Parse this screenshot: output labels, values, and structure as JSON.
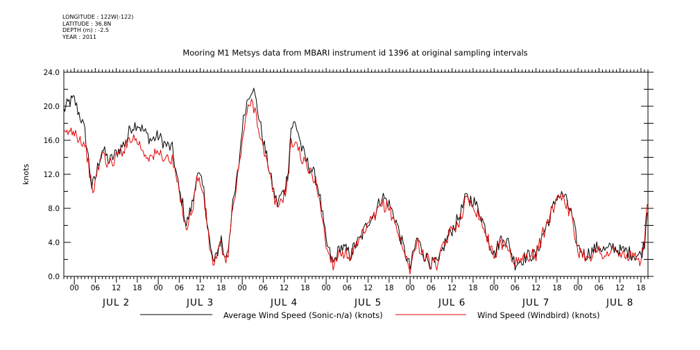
{
  "header": {
    "meta": [
      "LONGITUDE : 122W(-122)",
      "LATITUDE : 36.8N",
      "DEPTH (m) : -2.5",
      "YEAR : 2011"
    ]
  },
  "chart_data": {
    "type": "line",
    "title": "Mooring M1 Metsys data from MBARI instrument id 1396 at original sampling intervals",
    "ylabel": "knots",
    "xlabel": "",
    "ylim": [
      0,
      24
    ],
    "xlim_hours_description": "2011-07-01 21:00 to 2011-07-08 19:00 (x values below are hours from 2011-07-02 00:00)",
    "yticks": [
      "0.0",
      "4.0",
      "8.0",
      "12.0",
      "16.0",
      "20.0",
      "24.0"
    ],
    "hour_tick_labels": [
      "00",
      "06",
      "12",
      "18"
    ],
    "date_labels": [
      {
        "label": "JUL  2",
        "hour": 12
      },
      {
        "label": "JUL  3",
        "hour": 36
      },
      {
        "label": "JUL  4",
        "hour": 60
      },
      {
        "label": "JUL  5",
        "hour": 84
      },
      {
        "label": "JUL  6",
        "hour": 108
      },
      {
        "label": "JUL  7",
        "hour": 132
      },
      {
        "label": "JUL  8",
        "hour": 156
      }
    ],
    "legend_placement": "bottom",
    "series": [
      {
        "name": "Average Wind Speed (Sonic-n/a) (knots)",
        "color": "#000000",
        "x": [
          -3,
          -1.5,
          0,
          1,
          2,
          3,
          4,
          5,
          6,
          7,
          8,
          10,
          12,
          14,
          15,
          16,
          18,
          20,
          22,
          24,
          26,
          28,
          29,
          30,
          31,
          32,
          33,
          34,
          35,
          36,
          37,
          38,
          39,
          40,
          41,
          42,
          43,
          44,
          45,
          46,
          47,
          48,
          49,
          50,
          51,
          52,
          54,
          56,
          57,
          58,
          59,
          60,
          61,
          62,
          63,
          64,
          65,
          66,
          67,
          68,
          69,
          70,
          71,
          72,
          74,
          76,
          78,
          79,
          80,
          81,
          82,
          84,
          86,
          88,
          90,
          92,
          94,
          96,
          98,
          100,
          102,
          103,
          104,
          106,
          108,
          110,
          112,
          114,
          116,
          118,
          120,
          122,
          124,
          126,
          128,
          130,
          132,
          134,
          136,
          138,
          140,
          142,
          144,
          146,
          148,
          150,
          152,
          154,
          156,
          158,
          160,
          162,
          163,
          163.8
        ],
        "y": [
          19.5,
          20.5,
          20.8,
          19.5,
          18.5,
          17.0,
          14.0,
          10.5,
          11.5,
          13.5,
          15.0,
          13.5,
          14.5,
          15.5,
          16.0,
          17.5,
          18.0,
          17.0,
          16.0,
          16.5,
          15.5,
          15.0,
          12.5,
          10.0,
          8.5,
          6.0,
          7.5,
          9.0,
          12.0,
          11.5,
          10.0,
          6.5,
          3.0,
          1.5,
          3.0,
          4.5,
          2.0,
          3.5,
          7.5,
          10.0,
          13.0,
          17.5,
          20.0,
          21.5,
          22.3,
          20.5,
          16.0,
          12.0,
          10.0,
          8.5,
          9.5,
          10.0,
          12.0,
          17.5,
          18.0,
          17.0,
          15.0,
          14.0,
          13.0,
          12.5,
          11.5,
          10.0,
          7.0,
          4.0,
          1.5,
          3.5,
          3.0,
          2.5,
          3.5,
          4.0,
          4.5,
          6.5,
          7.5,
          9.5,
          8.5,
          6.5,
          3.5,
          1.0,
          4.5,
          2.5,
          1.5,
          1.5,
          1.5,
          4.0,
          5.5,
          7.0,
          9.3,
          9.0,
          7.5,
          5.0,
          2.5,
          4.5,
          4.0,
          1.5,
          2.0,
          2.5,
          2.5,
          5.0,
          7.0,
          9.5,
          9.5,
          7.5,
          3.5,
          2.5,
          3.0,
          3.5,
          3.0,
          3.5,
          3.0,
          3.0,
          2.5,
          2.5,
          4.0,
          7.5
        ]
      },
      {
        "name": "Wind Speed (Windbird) (knots)",
        "color": "#e00000",
        "x": [
          -3,
          -1.5,
          0,
          1,
          2,
          3,
          4,
          5,
          6,
          7,
          8,
          10,
          12,
          14,
          15,
          16,
          18,
          20,
          22,
          24,
          26,
          28,
          29,
          30,
          31,
          32,
          33,
          34,
          35,
          36,
          37,
          38,
          39,
          40,
          41,
          42,
          43,
          44,
          45,
          46,
          47,
          48,
          49,
          50,
          51,
          52,
          54,
          56,
          57,
          58,
          59,
          60,
          61,
          62,
          63,
          64,
          65,
          66,
          67,
          68,
          69,
          70,
          71,
          72,
          74,
          76,
          78,
          79,
          80,
          81,
          82,
          84,
          86,
          88,
          90,
          92,
          94,
          96,
          98,
          100,
          102,
          103,
          104,
          106,
          108,
          110,
          112,
          114,
          116,
          118,
          120,
          122,
          124,
          126,
          128,
          130,
          132,
          134,
          136,
          138,
          140,
          142,
          144,
          146,
          148,
          150,
          152,
          154,
          156,
          158,
          160,
          162,
          163,
          163.8
        ],
        "y": [
          16.5,
          17.0,
          17.2,
          16.5,
          16.0,
          15.5,
          13.5,
          10.0,
          11.0,
          13.0,
          14.5,
          13.0,
          14.0,
          15.0,
          15.5,
          16.5,
          16.0,
          14.5,
          14.0,
          14.5,
          14.0,
          13.5,
          12.0,
          9.5,
          8.0,
          5.5,
          7.0,
          8.5,
          11.5,
          11.0,
          9.5,
          6.0,
          2.5,
          1.5,
          2.5,
          4.0,
          1.5,
          3.0,
          7.0,
          9.5,
          12.5,
          16.0,
          18.5,
          20.0,
          20.5,
          19.0,
          15.0,
          11.5,
          9.5,
          8.0,
          9.0,
          9.5,
          11.5,
          15.5,
          16.0,
          15.0,
          14.0,
          13.0,
          12.5,
          12.0,
          11.0,
          9.5,
          6.5,
          3.5,
          1.5,
          3.0,
          2.5,
          2.5,
          3.0,
          3.5,
          4.5,
          6.0,
          7.0,
          8.5,
          8.0,
          6.0,
          3.0,
          1.0,
          4.0,
          2.5,
          1.5,
          1.5,
          1.5,
          4.0,
          5.5,
          6.5,
          9.0,
          8.5,
          7.0,
          4.5,
          2.5,
          4.0,
          3.5,
          1.5,
          2.0,
          2.5,
          2.5,
          5.0,
          7.0,
          9.5,
          9.5,
          7.0,
          3.0,
          2.5,
          2.5,
          3.0,
          2.5,
          3.0,
          2.5,
          2.5,
          2.0,
          2.0,
          4.5,
          8.5
        ]
      }
    ]
  }
}
